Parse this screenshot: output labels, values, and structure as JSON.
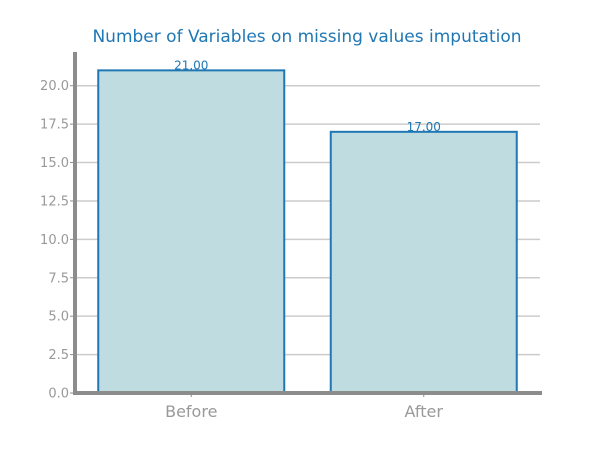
{
  "chart_data": {
    "type": "bar",
    "title": "Number of Variables on missing values imputation",
    "categories": [
      "Before",
      "After"
    ],
    "values": [
      21,
      17
    ],
    "data_labels": [
      "21.00",
      "17.00"
    ],
    "xlabel": "",
    "ylabel": "",
    "ylim": [
      0,
      22
    ],
    "yticks": [
      0,
      2.5,
      5,
      7.5,
      10,
      12.5,
      15,
      17.5,
      20
    ],
    "ytick_labels": [
      "0.0",
      "2.5",
      "5.0",
      "7.5",
      "10.0",
      "12.5",
      "15.0",
      "17.5",
      "20.0"
    ],
    "grid": true,
    "legend": "none"
  },
  "colors": {
    "bar_fill": "#bfdde0",
    "bar_edge": "#1f77b4",
    "title": "#1f77b4",
    "axis": "#8c8c8c",
    "grid": "#cccccc",
    "tick_text": "#999999"
  }
}
